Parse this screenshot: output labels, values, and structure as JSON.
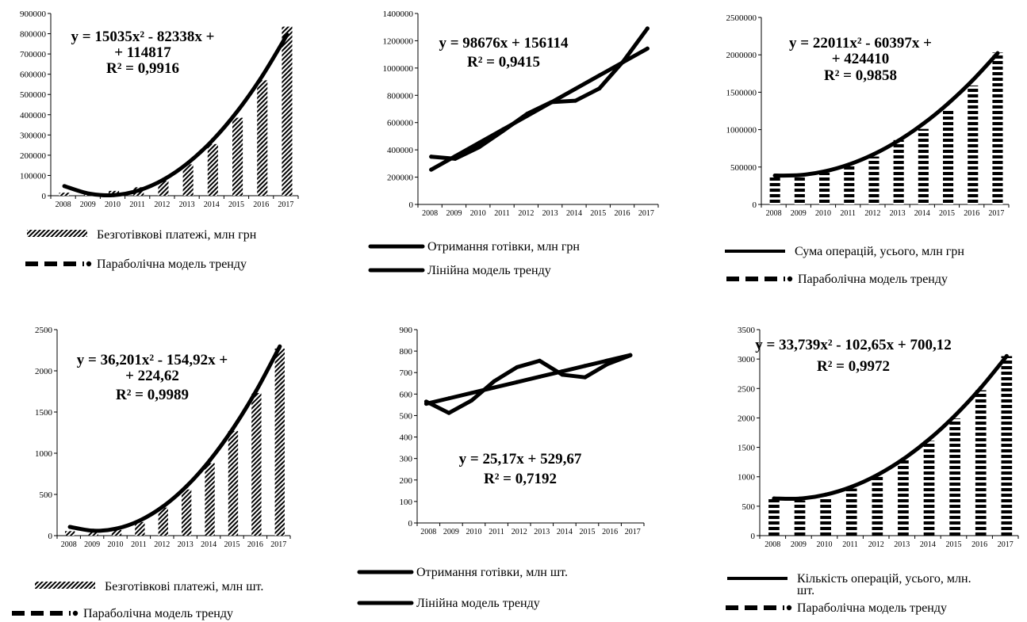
{
  "chart_data": [
    {
      "type": "bar",
      "x": [
        "2008",
        "2009",
        "2010",
        "2011",
        "2012",
        "2013",
        "2014",
        "2015",
        "2016",
        "2017"
      ],
      "ylim": [
        0,
        900000
      ],
      "yticks": [
        "0",
        "100000",
        "200000",
        "300000",
        "400000",
        "500000",
        "600000",
        "700000",
        "800000",
        "900000"
      ],
      "series": [
        {
          "name": "Безготівкові платежі, млн грн",
          "kind": "bar",
          "pattern": "diag",
          "values": [
            15000,
            5000,
            24000,
            42000,
            75000,
            155000,
            255000,
            385000,
            570000,
            835000
          ]
        },
        {
          "name": "Параболічна модель тренду",
          "kind": "curve",
          "style": "dashed",
          "values": [
            47514,
            10281,
            3118,
            26025,
            79002,
            162049,
            275166,
            418353,
            591610,
            794937
          ]
        }
      ],
      "equation": [
        "y = 15035x² - 82338x +",
        "+ 114817",
        "R² = 0,9916"
      ]
    },
    {
      "type": "line",
      "x": [
        "2008",
        "2009",
        "2010",
        "2011",
        "2012",
        "2013",
        "2014",
        "2015",
        "2016",
        "2017"
      ],
      "ylim": [
        0,
        1400000
      ],
      "yticks": [
        "0",
        "200000",
        "400000",
        "600000",
        "800000",
        "1000000",
        "1200000",
        "1400000"
      ],
      "series": [
        {
          "name": "Отримання готівки, млн грн",
          "kind": "line",
          "values": [
            350000,
            335000,
            420000,
            540000,
            665000,
            750000,
            760000,
            850000,
            1050000,
            1290000
          ]
        },
        {
          "name": "Лінійна модель тренду",
          "kind": "line",
          "values": [
            254790,
            353466,
            452142,
            550818,
            649494,
            748170,
            846846,
            945522,
            1044198,
            1142874
          ]
        }
      ],
      "equation": [
        "y = 98676x + 156114",
        "R² = 0,9415"
      ]
    },
    {
      "type": "bar",
      "x": [
        "2008",
        "2009",
        "2010",
        "2011",
        "2012",
        "2013",
        "2014",
        "2015",
        "2016",
        "2017"
      ],
      "ylim": [
        0,
        2500000
      ],
      "yticks": [
        "0",
        "500000",
        "1000000",
        "1500000",
        "2000000",
        "2500000"
      ],
      "series": [
        {
          "name": "Сума операцій, усього, млн грн",
          "kind": "bar",
          "pattern": "horiz",
          "values": [
            375000,
            390000,
            425000,
            520000,
            640000,
            860000,
            1010000,
            1260000,
            1590000,
            2030000
          ]
        },
        {
          "name": "Параболічна модель тренду",
          "kind": "curve",
          "style": "dashed",
          "values": [
            386024,
            391660,
            441318,
            534998,
            672700,
            854424,
            1080170,
            1349938,
            1663728,
            2021540
          ]
        }
      ],
      "equation": [
        "y = 22011x² - 60397x +",
        "+ 424410",
        "R² = 0,9858"
      ]
    },
    {
      "type": "bar",
      "x": [
        "2008",
        "2009",
        "2010",
        "2011",
        "2012",
        "2013",
        "2014",
        "2015",
        "2016",
        "2017"
      ],
      "ylim": [
        0,
        2500
      ],
      "yticks": [
        "0",
        "500",
        "1000",
        "1500",
        "2000",
        "2500"
      ],
      "series": [
        {
          "name": "Безготівкові платежі, млн шт.",
          "kind": "bar",
          "pattern": "diag",
          "values": [
            55,
            40,
            70,
            165,
            340,
            560,
            880,
            1270,
            1730,
            2270
          ]
        },
        {
          "name": "Параболічна модель тренду",
          "kind": "curve",
          "style": "dashed",
          "values": [
            105.9,
            59.6,
            85.7,
            184.2,
            355.1,
            598.4,
            914.2,
            1302.3,
            1762.8,
            2295.7
          ]
        }
      ],
      "equation": [
        "y = 36,201x² - 154,92x +",
        "+ 224,62",
        "R² = 0,9989"
      ]
    },
    {
      "type": "line",
      "x": [
        "2008",
        "2009",
        "2010",
        "2011",
        "2012",
        "2013",
        "2014",
        "2015",
        "2016",
        "2017"
      ],
      "ylim": [
        0,
        900
      ],
      "yticks": [
        "0",
        "100",
        "200",
        "300",
        "400",
        "500",
        "600",
        "700",
        "800",
        "900"
      ],
      "series": [
        {
          "name": "Отримання готівки,  млн шт.",
          "kind": "line",
          "values": [
            565,
            512,
            570,
            660,
            725,
            755,
            690,
            678,
            740,
            780
          ]
        },
        {
          "name": "Лінійна модель тренду",
          "kind": "line",
          "values": [
            554.84,
            580.01,
            605.18,
            630.35,
            655.52,
            680.69,
            705.86,
            731.03,
            756.2,
            781.37
          ]
        }
      ],
      "equation": [
        "y = 25,17x + 529,67",
        "R² = 0,7192"
      ]
    },
    {
      "type": "bar",
      "x": [
        "2008",
        "2009",
        "2010",
        "2011",
        "2012",
        "2013",
        "2014",
        "2015",
        "2016",
        "2017"
      ],
      "ylim": [
        0,
        3500
      ],
      "yticks": [
        "0",
        "500",
        "1000",
        "1500",
        "2000",
        "2500",
        "3000",
        "3500"
      ],
      "series": [
        {
          "name": "Кількість операцій, усього, млн. шт.",
          "kind": "bar",
          "pattern": "horiz",
          "values": [
            630,
            600,
            660,
            800,
            1010,
            1280,
            1610,
            1990,
            2470,
            3050
          ]
        },
        {
          "name": "Параболічна модель тренду",
          "kind": "curve",
          "style": "dashed",
          "values": [
            631.2,
            629.8,
            696.0,
            829.7,
            1030.9,
            1299.7,
            1636.0,
            2039.8,
            2511.2,
            3050.1
          ]
        }
      ],
      "equation": [
        "y = 33,739x² - 102,65x + 700,12",
        "R² = 0,9972"
      ]
    }
  ]
}
